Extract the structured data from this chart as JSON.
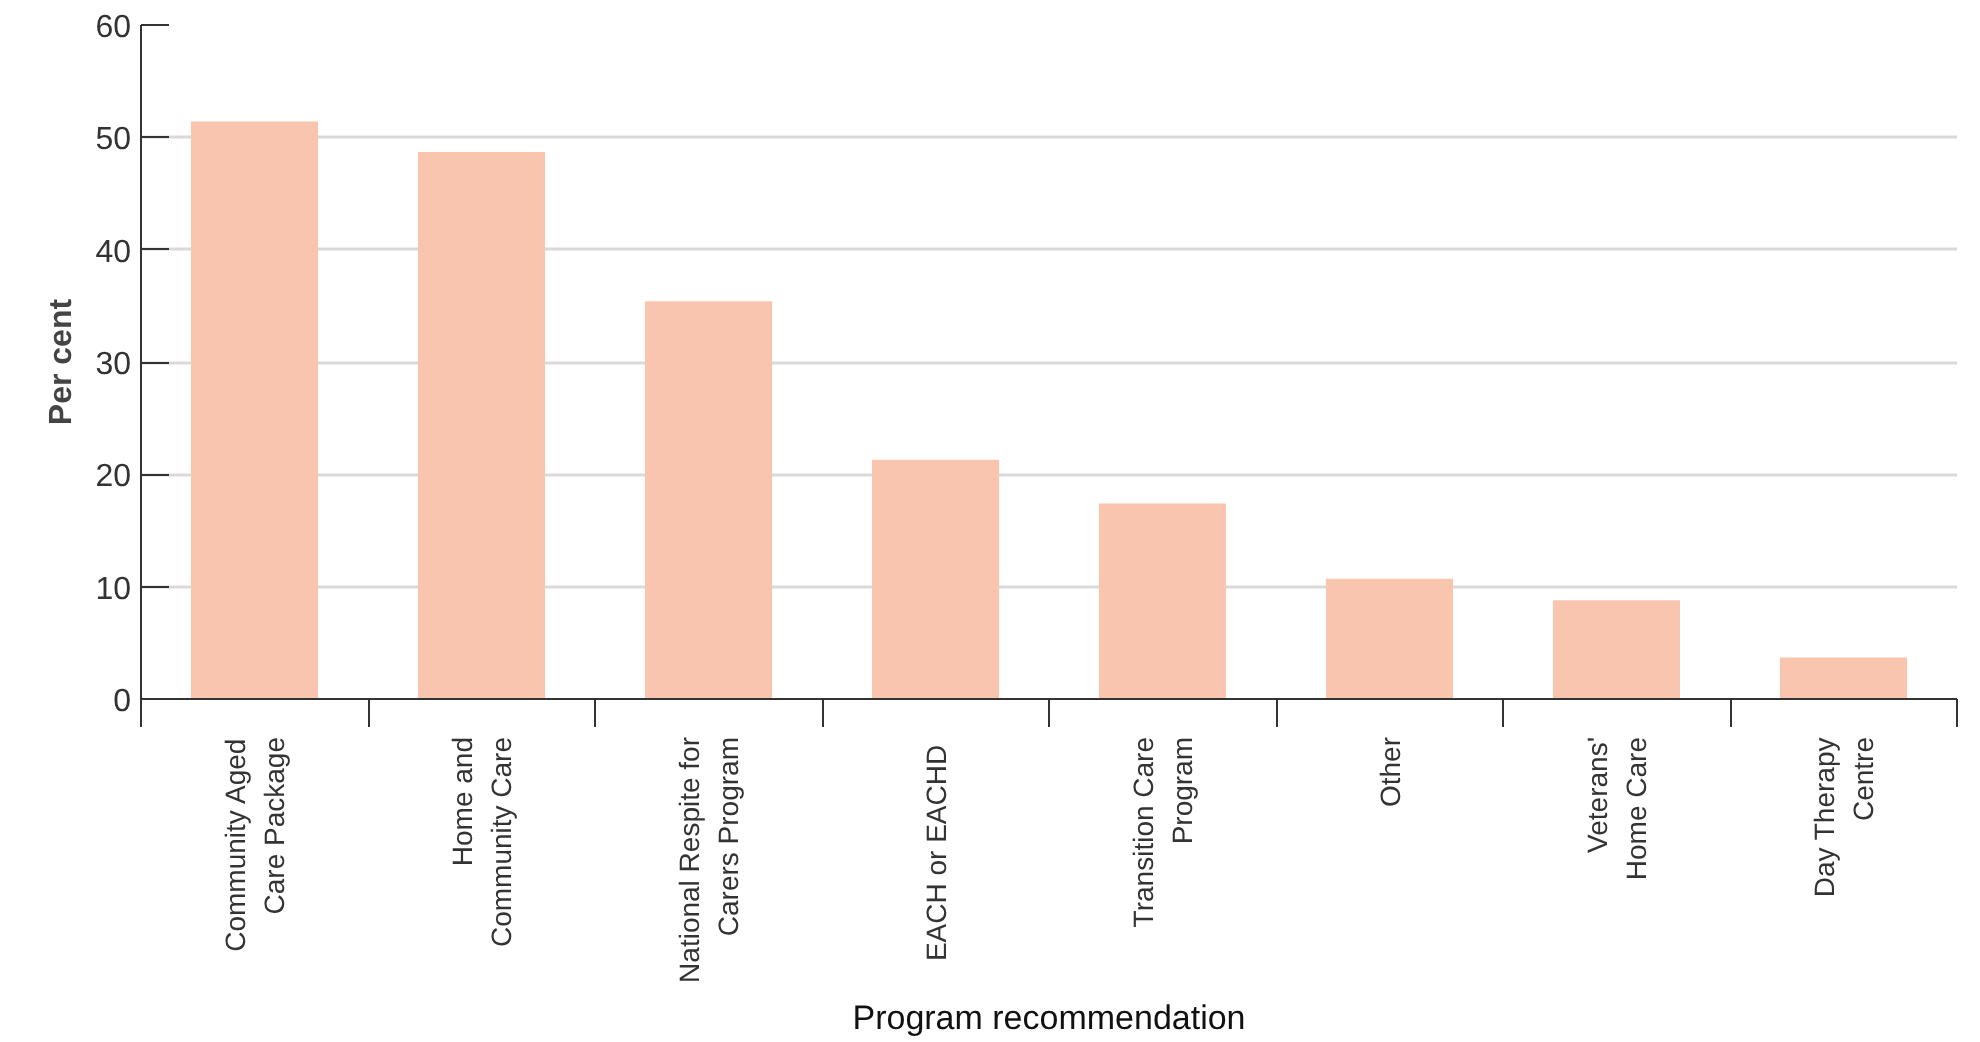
{
  "chart_data": {
    "type": "bar",
    "xlabel": "Program recommendation",
    "ylabel": "Per cent",
    "categories": [
      "Community Aged\nCare Package",
      "Home and\nCommunity Care",
      "National Respite for\nCarers Program",
      "EACH or  EACHD",
      "Transition Care\nProgram",
      "Other",
      "Veterans'\nHome Care",
      "Day Therapy\nCentre"
    ],
    "values": [
      51.4,
      48.7,
      35.4,
      21.3,
      17.4,
      10.7,
      8.8,
      3.7
    ],
    "color": "#f9c5ae",
    "ylim": [
      0,
      60
    ],
    "yticks": [
      0,
      10,
      20,
      30,
      40,
      50,
      60
    ],
    "grid": "y"
  }
}
